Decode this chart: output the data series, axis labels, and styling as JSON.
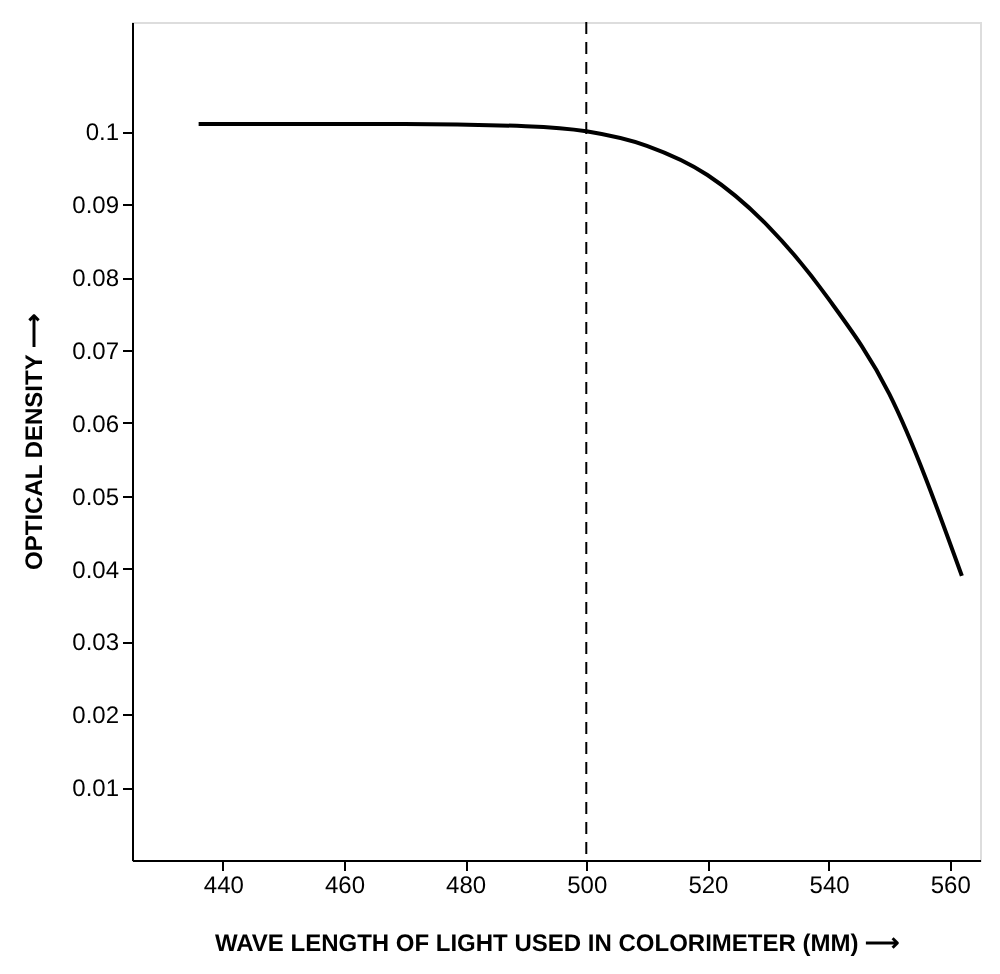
{
  "chart_data": {
    "type": "line",
    "xlabel": "WAVE LENGTH OF LIGHT USED IN COLORIMETER (MM) ⟶",
    "ylabel": "OPTICAL DENSITY ⟶",
    "series": [
      {
        "color": "#000000",
        "x": [
          436,
          450,
          470,
          490,
          500,
          510,
          520,
          530,
          540,
          550,
          562
        ],
        "values": [
          0.101,
          0.101,
          0.101,
          0.1007,
          0.1,
          0.098,
          0.094,
          0.087,
          0.077,
          0.064,
          0.039
        ]
      }
    ],
    "xlim": [
      425,
      565
    ],
    "xticks": [
      440,
      460,
      480,
      500,
      520,
      540,
      560
    ],
    "ylim": [
      0,
      0.115
    ],
    "yticks": [
      0.01,
      0.02,
      0.03,
      0.04,
      0.05,
      0.06,
      0.07,
      0.08,
      0.09,
      0.1
    ],
    "ref_lines": [
      {
        "axis": "x",
        "value": 500,
        "line_style": "dashed",
        "color": "#000000"
      }
    ],
    "grid": false,
    "marker": "none",
    "line_style": "solid"
  }
}
